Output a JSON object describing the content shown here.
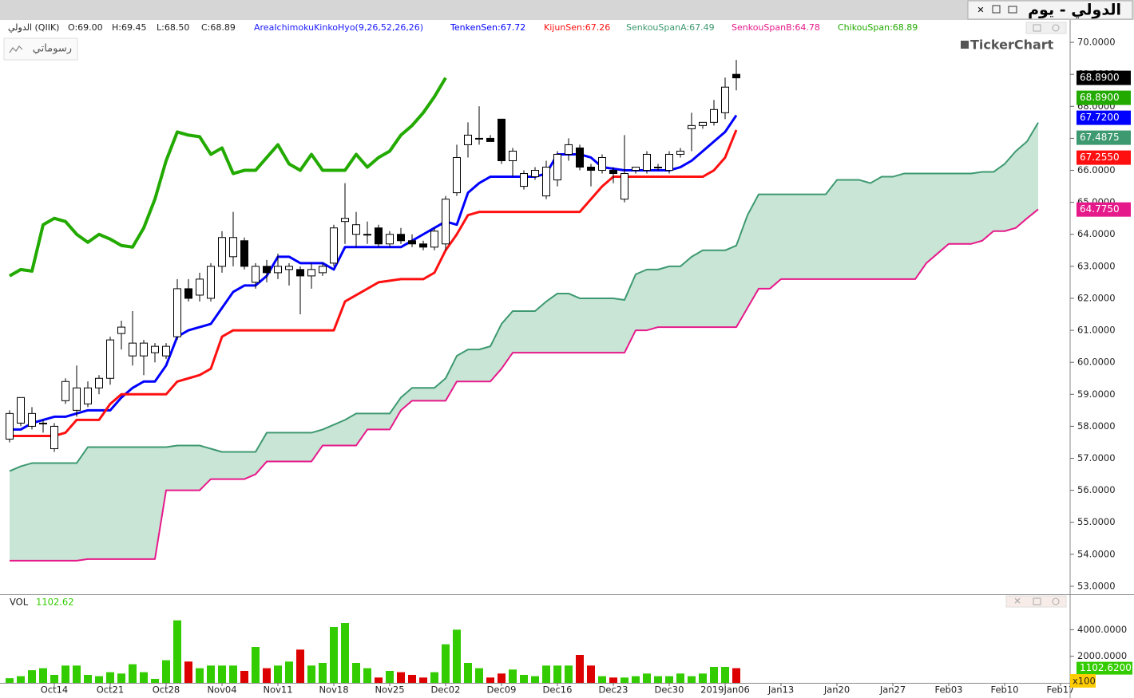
{
  "window": {
    "title": "الدولي - يوم"
  },
  "toolbar": {
    "drawings_button": "رسوماتي",
    "logo": "TickerChart"
  },
  "chart_data": [
    {
      "type": "candlestick",
      "header": [
        "الدولي (QIIK)",
        "O:69.00",
        "H:69.45",
        "L:68.50",
        "C:68.89"
      ],
      "indicator": {
        "text": "AreaIchimokuKinkoHyo(9,26,52,26,26)",
        "color": "#1a1aff"
      },
      "open": [
        57.6,
        58.1,
        58.0,
        58.1,
        57.3,
        58.8,
        58.5,
        58.7,
        59.2,
        59.5,
        60.9,
        60.2,
        60.2,
        60.3,
        60.2,
        60.8,
        62.3,
        62.1,
        62.0,
        63.0,
        63.3,
        63.8,
        62.5,
        63.0,
        62.8,
        62.9,
        62.9,
        62.7,
        62.8,
        63.1,
        64.4,
        64.0,
        64.0,
        64.2,
        63.7,
        64.0,
        63.8,
        63.7,
        63.6,
        63.7,
        65.3,
        66.8,
        67.0,
        67.0,
        67.6,
        66.3,
        65.5,
        65.8,
        65.2,
        65.7,
        66.5,
        66.7,
        66.1,
        66.0,
        66.0,
        65.1,
        66.0,
        66.0,
        66.1,
        66.0,
        66.5,
        67.3,
        67.4,
        67.5,
        67.8,
        69.0
      ],
      "high": [
        58.5,
        58.9,
        58.6,
        58.2,
        58.1,
        59.5,
        59.9,
        59.4,
        59.6,
        60.8,
        61.3,
        61.6,
        60.7,
        60.6,
        60.6,
        62.6,
        62.6,
        62.8,
        63.1,
        64.1,
        64.7,
        63.9,
        63.1,
        63.2,
        63.4,
        63.1,
        63.0,
        63.1,
        63.1,
        64.3,
        65.6,
        64.7,
        64.4,
        64.3,
        64.1,
        64.2,
        64.0,
        63.8,
        64.2,
        65.2,
        66.8,
        67.5,
        68.0,
        67.1,
        67.6,
        66.7,
        66.0,
        66.1,
        66.3,
        66.6,
        67.0,
        66.8,
        66.2,
        66.5,
        66.1,
        67.1,
        66.1,
        66.6,
        66.2,
        66.6,
        66.7,
        67.8,
        67.5,
        68.2,
        68.9,
        69.45
      ],
      "low": [
        57.5,
        58.0,
        57.9,
        57.8,
        57.2,
        58.7,
        58.3,
        58.6,
        59.0,
        59.3,
        60.4,
        59.9,
        59.6,
        60.0,
        60.1,
        60.7,
        61.9,
        61.9,
        61.9,
        62.8,
        63.0,
        62.9,
        62.3,
        62.5,
        62.6,
        62.4,
        61.5,
        62.3,
        62.7,
        63.0,
        63.7,
        63.6,
        63.7,
        63.6,
        63.6,
        63.7,
        63.6,
        63.5,
        63.5,
        63.5,
        65.2,
        66.4,
        66.8,
        66.9,
        66.2,
        65.8,
        65.4,
        65.7,
        65.1,
        65.5,
        66.3,
        66.0,
        65.5,
        65.9,
        65.6,
        65.0,
        65.9,
        65.9,
        66.0,
        65.9,
        66.4,
        66.6,
        67.3,
        67.4,
        67.6,
        68.5
      ],
      "close": [
        58.4,
        58.9,
        58.4,
        58.1,
        58.0,
        59.4,
        59.2,
        59.2,
        59.5,
        60.7,
        61.1,
        60.6,
        60.6,
        60.5,
        60.5,
        62.3,
        62.0,
        62.6,
        63.0,
        63.9,
        63.9,
        63.0,
        63.0,
        62.8,
        63.0,
        63.0,
        62.7,
        62.9,
        63.0,
        64.2,
        64.5,
        64.3,
        64.0,
        63.7,
        64.0,
        63.8,
        63.7,
        63.6,
        64.1,
        65.1,
        66.4,
        67.1,
        67.0,
        66.9,
        66.3,
        66.6,
        65.9,
        66.0,
        66.1,
        66.5,
        66.8,
        66.1,
        66.0,
        66.4,
        65.9,
        65.9,
        66.1,
        66.5,
        66.1,
        66.5,
        66.6,
        67.4,
        67.5,
        67.9,
        68.6,
        68.89
      ],
      "series": [
        {
          "legend": "TenkenSen:67.72",
          "color": "#0000ff",
          "width": 3,
          "values": [
            57.9,
            57.9,
            58.1,
            58.2,
            58.3,
            58.3,
            58.4,
            58.5,
            58.5,
            58.5,
            58.9,
            59.2,
            59.4,
            59.4,
            59.9,
            60.8,
            61.0,
            61.1,
            61.2,
            61.7,
            62.2,
            62.4,
            62.4,
            62.7,
            63.3,
            63.3,
            63.1,
            63.1,
            63.1,
            62.9,
            63.6,
            63.6,
            63.6,
            63.6,
            63.6,
            63.6,
            63.8,
            64.0,
            64.2,
            64.4,
            64.3,
            65.3,
            65.6,
            65.8,
            65.8,
            65.8,
            65.8,
            65.8,
            65.9,
            66.5,
            66.5,
            66.5,
            66.4,
            66.1,
            66.05,
            66.0,
            66.0,
            66.0,
            66.0,
            66.0,
            66.1,
            66.3,
            66.6,
            66.9,
            67.2,
            67.72
          ]
        },
        {
          "legend": "KijunSen:67.26",
          "color": "#ff1010",
          "width": 3,
          "values": [
            57.7,
            57.7,
            57.7,
            57.7,
            57.7,
            57.8,
            58.2,
            58.2,
            58.2,
            58.7,
            59.0,
            59.0,
            59.0,
            59.0,
            59.0,
            59.4,
            59.5,
            59.6,
            59.8,
            60.8,
            61.0,
            61.0,
            61.0,
            61.0,
            61.0,
            61.0,
            61.0,
            61.0,
            61.0,
            61.0,
            61.9,
            62.1,
            62.3,
            62.5,
            62.55,
            62.6,
            62.6,
            62.6,
            62.8,
            63.5,
            64.0,
            64.6,
            64.7,
            64.7,
            64.7,
            64.7,
            64.7,
            64.7,
            64.7,
            64.7,
            64.7,
            64.7,
            65.1,
            65.5,
            65.8,
            65.8,
            65.8,
            65.8,
            65.8,
            65.8,
            65.8,
            65.8,
            65.8,
            66.0,
            66.4,
            67.26
          ]
        },
        {
          "legend": "SenkouSpanA:67.49",
          "color": "#3d9970",
          "width": 2,
          "values": [
            56.6,
            56.75,
            56.85,
            56.85,
            56.85,
            56.85,
            56.85,
            57.35,
            57.35,
            57.35,
            57.35,
            57.35,
            57.35,
            57.35,
            57.35,
            57.4,
            57.4,
            57.4,
            57.3,
            57.2,
            57.2,
            57.2,
            57.2,
            57.8,
            57.8,
            57.8,
            57.8,
            57.8,
            57.9,
            58.05,
            58.2,
            58.4,
            58.4,
            58.4,
            58.4,
            58.9,
            59.2,
            59.2,
            59.2,
            59.5,
            60.2,
            60.4,
            60.4,
            60.5,
            61.2,
            61.6,
            61.6,
            61.6,
            61.9,
            62.15,
            62.15,
            62.0,
            62.0,
            62.0,
            62.0,
            61.95,
            62.75,
            62.9,
            62.9,
            63.0,
            63.0,
            63.3,
            63.5,
            63.5,
            63.5,
            63.65,
            64.6,
            65.25,
            65.25,
            65.25,
            65.25,
            65.25,
            65.25,
            65.25,
            65.7,
            65.7,
            65.7,
            65.6,
            65.8,
            65.8,
            65.9,
            65.9,
            65.9,
            65.9,
            65.9,
            65.9,
            65.9,
            65.95,
            65.95,
            66.2,
            66.6,
            66.9,
            67.49
          ]
        },
        {
          "legend": "SenkouSpanB:64.78",
          "color": "#e6198a",
          "width": 2,
          "values": [
            53.8,
            53.8,
            53.8,
            53.8,
            53.8,
            53.8,
            53.8,
            53.85,
            53.85,
            53.85,
            53.85,
            53.85,
            53.85,
            53.85,
            56.0,
            56.0,
            56.0,
            56.0,
            56.35,
            56.35,
            56.35,
            56.35,
            56.5,
            56.9,
            56.9,
            56.9,
            56.9,
            56.9,
            57.4,
            57.4,
            57.4,
            57.4,
            57.9,
            57.9,
            57.9,
            58.5,
            58.8,
            58.8,
            58.8,
            58.8,
            59.4,
            59.4,
            59.4,
            59.4,
            59.8,
            60.3,
            60.3,
            60.3,
            60.3,
            60.3,
            60.3,
            60.3,
            60.3,
            60.3,
            60.3,
            60.3,
            61.0,
            61.0,
            61.1,
            61.1,
            61.1,
            61.1,
            61.1,
            61.1,
            61.1,
            61.1,
            61.7,
            62.3,
            62.3,
            62.6,
            62.6,
            62.6,
            62.6,
            62.6,
            62.6,
            62.6,
            62.6,
            62.6,
            62.6,
            62.6,
            62.6,
            62.6,
            63.1,
            63.4,
            63.7,
            63.7,
            63.7,
            63.8,
            64.1,
            64.1,
            64.2,
            64.5,
            64.78
          ]
        },
        {
          "legend": "ChikouSpan:68.89",
          "color": "#22aa00",
          "width": 4,
          "values": [
            62.7,
            62.9,
            62.85,
            64.3,
            64.5,
            64.4,
            64.0,
            63.75,
            64.0,
            63.85,
            63.65,
            63.6,
            64.2,
            65.1,
            66.3,
            67.2,
            67.1,
            67.05,
            66.5,
            66.7,
            65.9,
            66.0,
            66.0,
            66.4,
            66.8,
            66.2,
            66.0,
            66.5,
            66.0,
            66.0,
            66.0,
            66.5,
            66.1,
            66.4,
            66.6,
            67.1,
            67.4,
            67.8,
            68.3,
            68.89
          ]
        }
      ],
      "cloud_color": "#c8e5d5",
      "ylim": [
        52.75,
        70.7
      ],
      "yticks": [
        {
          "value": 53,
          "label": "53.0000"
        },
        {
          "value": 54,
          "label": "54.0000"
        },
        {
          "value": 55,
          "label": "55.0000"
        },
        {
          "value": 56,
          "label": "56.0000"
        },
        {
          "value": 57,
          "label": "57.0000"
        },
        {
          "value": 58,
          "label": "58.0000"
        },
        {
          "value": 59,
          "label": "59.0000"
        },
        {
          "value": 60,
          "label": "60.0000"
        },
        {
          "value": 61,
          "label": "61.0000"
        },
        {
          "value": 62,
          "label": "62.0000"
        },
        {
          "value": 63,
          "label": "63.0000"
        },
        {
          "value": 64,
          "label": "64.0000"
        },
        {
          "value": 65,
          "label": "65.0000"
        },
        {
          "value": 66,
          "label": "66.0000"
        },
        {
          "value": 67,
          "label": "67.0000"
        },
        {
          "value": 68,
          "label": "68.0000"
        },
        {
          "value": 69,
          "label": "69.0000"
        },
        {
          "value": 70,
          "label": "70.0000"
        }
      ],
      "last_value_labels": [
        {
          "value": 68.89,
          "label": "68.8900",
          "color": "#000000"
        },
        {
          "value": 68.89,
          "label": "68.8900",
          "color": "#22aa00"
        },
        {
          "value": 67.72,
          "label": "67.7200",
          "color": "#0000ff"
        },
        {
          "value": 67.4875,
          "label": "67.4875",
          "color": "#3d9970"
        },
        {
          "value": 67.255,
          "label": "67.2550",
          "color": "#ff1010"
        },
        {
          "value": 64.775,
          "label": "64.7750",
          "color": "#e6198a"
        }
      ],
      "xticks": [
        {
          "value": 4,
          "label": "Oct14"
        },
        {
          "value": 9,
          "label": "Oct21"
        },
        {
          "value": 14,
          "label": "Oct28"
        },
        {
          "value": 19,
          "label": "Nov04"
        },
        {
          "value": 24,
          "label": "Nov11"
        },
        {
          "value": 29,
          "label": "Nov18"
        },
        {
          "value": 34,
          "label": "Nov25"
        },
        {
          "value": 39,
          "label": "Dec02"
        },
        {
          "value": 44,
          "label": "Dec09"
        },
        {
          "value": 49,
          "label": "Dec16"
        },
        {
          "value": 54,
          "label": "Dec23"
        },
        {
          "value": 59,
          "label": "Dec30"
        },
        {
          "value": 64,
          "label": "2019Jan06"
        },
        {
          "value": 69,
          "label": "Jan13"
        },
        {
          "value": 74,
          "label": "Jan20"
        },
        {
          "value": 79,
          "label": "Jan27"
        },
        {
          "value": 84,
          "label": "Feb03"
        },
        {
          "value": 89,
          "label": "Feb10"
        },
        {
          "value": 94,
          "label": "Feb17"
        }
      ]
    },
    {
      "type": "bar",
      "label": "VOL",
      "last": "1102.62",
      "up_color": "#33cc00",
      "down_color": "#dd0000",
      "values": [
        350,
        500,
        950,
        1100,
        600,
        1300,
        1300,
        600,
        500,
        800,
        700,
        1400,
        800,
        300,
        1700,
        4700,
        1600,
        1100,
        1300,
        1300,
        1300,
        900,
        2700,
        1100,
        1300,
        1600,
        2500,
        1300,
        1500,
        4200,
        4500,
        1500,
        1100,
        400,
        900,
        800,
        600,
        400,
        800,
        2900,
        4000,
        1500,
        1100,
        400,
        700,
        1000,
        600,
        500,
        1300,
        1300,
        1300,
        2100,
        1300,
        500,
        400,
        400,
        500,
        700,
        500,
        500,
        700,
        500,
        700,
        1200,
        1200,
        1102.62
      ],
      "ylim": [
        0,
        6600
      ],
      "yticks": [
        {
          "value": 2000,
          "label": "2000.0000"
        },
        {
          "value": 4000,
          "label": "4000.0000"
        }
      ],
      "last_value_label": {
        "value": 1102.62,
        "label": "1102.6200",
        "color": "#33cc00"
      },
      "multiplier": "x100"
    }
  ]
}
